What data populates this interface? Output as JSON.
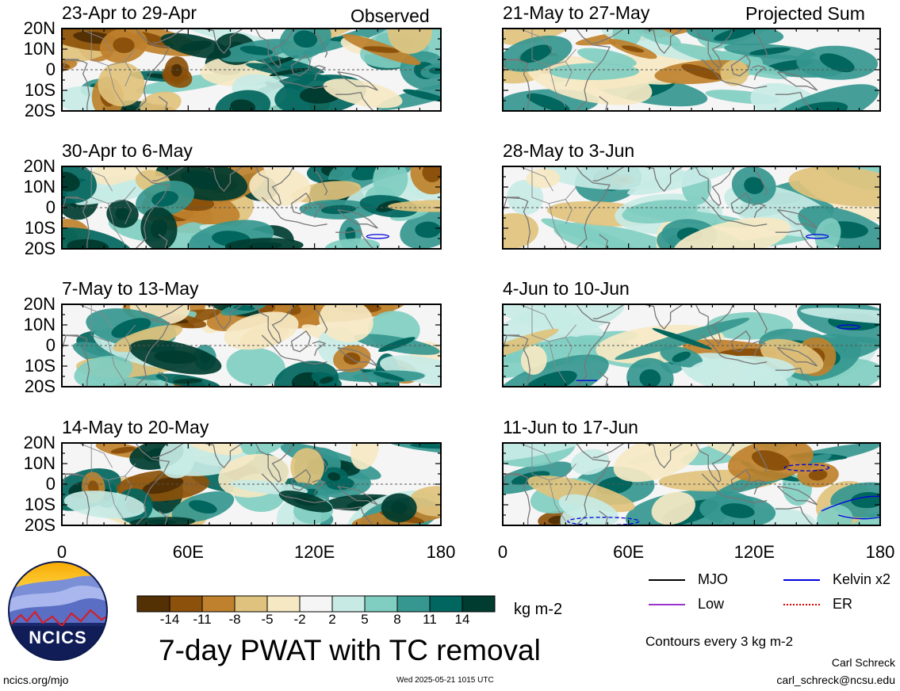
{
  "left_header": "Observed",
  "right_header": "Projected Sum",
  "panels_left": [
    {
      "title": "23-Apr to 29-Apr"
    },
    {
      "title": "30-Apr to 6-May"
    },
    {
      "title": "7-May to 13-May"
    },
    {
      "title": "14-May to 20-May"
    }
  ],
  "panels_right": [
    {
      "title": "21-May to 27-May"
    },
    {
      "title": "28-May to 3-Jun"
    },
    {
      "title": "4-Jun to 10-Jun"
    },
    {
      "title": "11-Jun to 17-Jun"
    }
  ],
  "lat_labels": [
    "20N",
    "10N",
    "0",
    "10S",
    "20S"
  ],
  "lon_labels": [
    "0",
    "60E",
    "120E",
    "180"
  ],
  "colorbar": {
    "tick_labels": [
      "-14",
      "-11",
      "-8",
      "-5",
      "-2",
      "2",
      "5",
      "8",
      "11",
      "14"
    ],
    "colors": [
      "#543005",
      "#8c510a",
      "#bf812d",
      "#dfc27d",
      "#f6e8c3",
      "#f5f5f5",
      "#c7eae5",
      "#80cdc1",
      "#35978f",
      "#01665e",
      "#003c30"
    ],
    "units": "kg m-2"
  },
  "main_title": "7-day PWAT with TC removal",
  "legend": {
    "items": [
      {
        "label": "MJO",
        "color": "#000000"
      },
      {
        "label": "Kelvin x2",
        "color": "#0000dd"
      },
      {
        "label": "Low",
        "color": "#9933cc"
      },
      {
        "label": "ER",
        "color": "#dd0000"
      }
    ],
    "note": "Contours every 3 kg m-2"
  },
  "logo": {
    "text": "NCICS"
  },
  "footer": {
    "left": "ncics.org/mjo",
    "center": "Wed 2025-05-21 1015 UTC",
    "author": "Carl Schreck",
    "email": "carl_schreck@ncsu.edu"
  }
}
